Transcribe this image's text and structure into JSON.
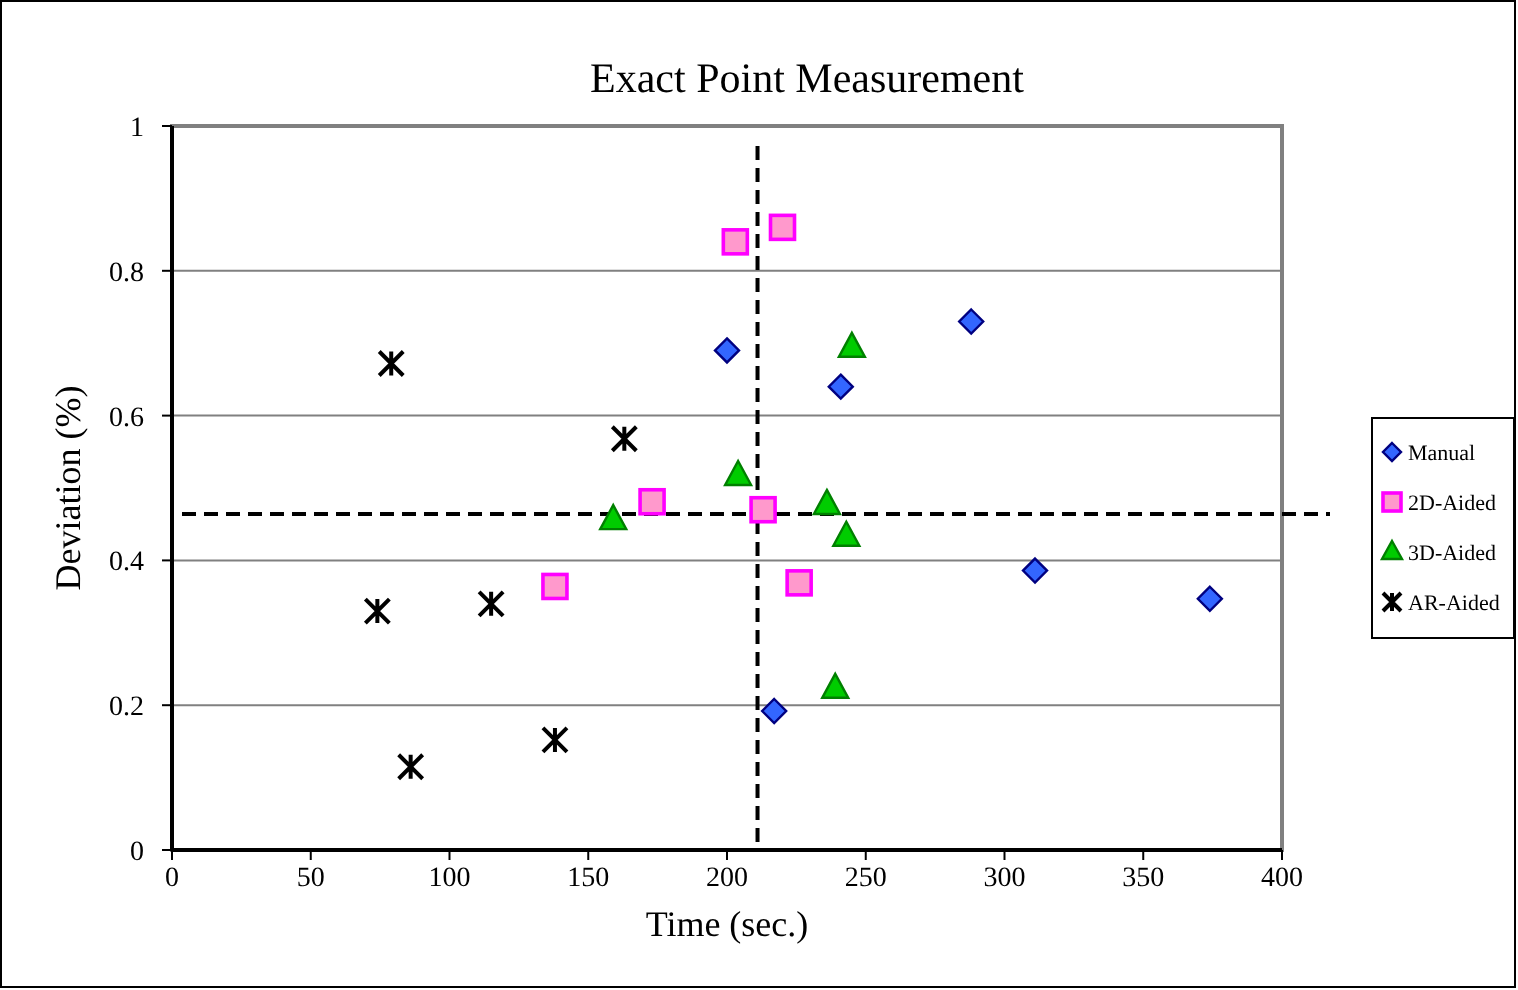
{
  "chart_data": {
    "type": "scatter",
    "title": "Exact Point Measurement",
    "xlabel": "Time (sec.)",
    "ylabel": "Deviation (%)",
    "xlim": [
      0,
      400
    ],
    "xticks": [
      0,
      50,
      100,
      150,
      200,
      250,
      300,
      350,
      400
    ],
    "ylim": [
      0,
      1
    ],
    "yticks": [
      0,
      0.2,
      0.4,
      0.6,
      0.8,
      1
    ],
    "grid": "y",
    "legend": "right",
    "ref_lines": [
      {
        "axis": "x",
        "value": 211,
        "line_style": "dashed",
        "color": "#000000"
      },
      {
        "axis": "y",
        "value": 0.464,
        "line_style": "dashed",
        "color": "#000000"
      }
    ],
    "series": [
      {
        "name": "Manual",
        "color": "#3366ff",
        "marker": "diamond",
        "x": [
          200,
          241,
          288,
          311,
          374,
          217
        ],
        "values": [
          0.69,
          0.64,
          0.73,
          0.386,
          0.347,
          0.192
        ]
      },
      {
        "name": "2D-Aided",
        "color": "#ff99cc",
        "marker": "square",
        "x": [
          203,
          220,
          173,
          138,
          213,
          226
        ],
        "values": [
          0.84,
          0.86,
          0.481,
          0.364,
          0.47,
          0.369
        ]
      },
      {
        "name": "3D-Aided",
        "color": "#00cc00",
        "marker": "triangle",
        "x": [
          159,
          204,
          236,
          243,
          245,
          239
        ],
        "values": [
          0.457,
          0.518,
          0.478,
          0.434,
          0.695,
          0.224
        ]
      },
      {
        "name": "AR-Aided",
        "color": "#000000",
        "marker": "cross",
        "x": [
          79,
          163,
          74,
          115,
          86,
          138
        ],
        "values": [
          0.672,
          0.568,
          0.33,
          0.34,
          0.115,
          0.152
        ]
      }
    ]
  }
}
